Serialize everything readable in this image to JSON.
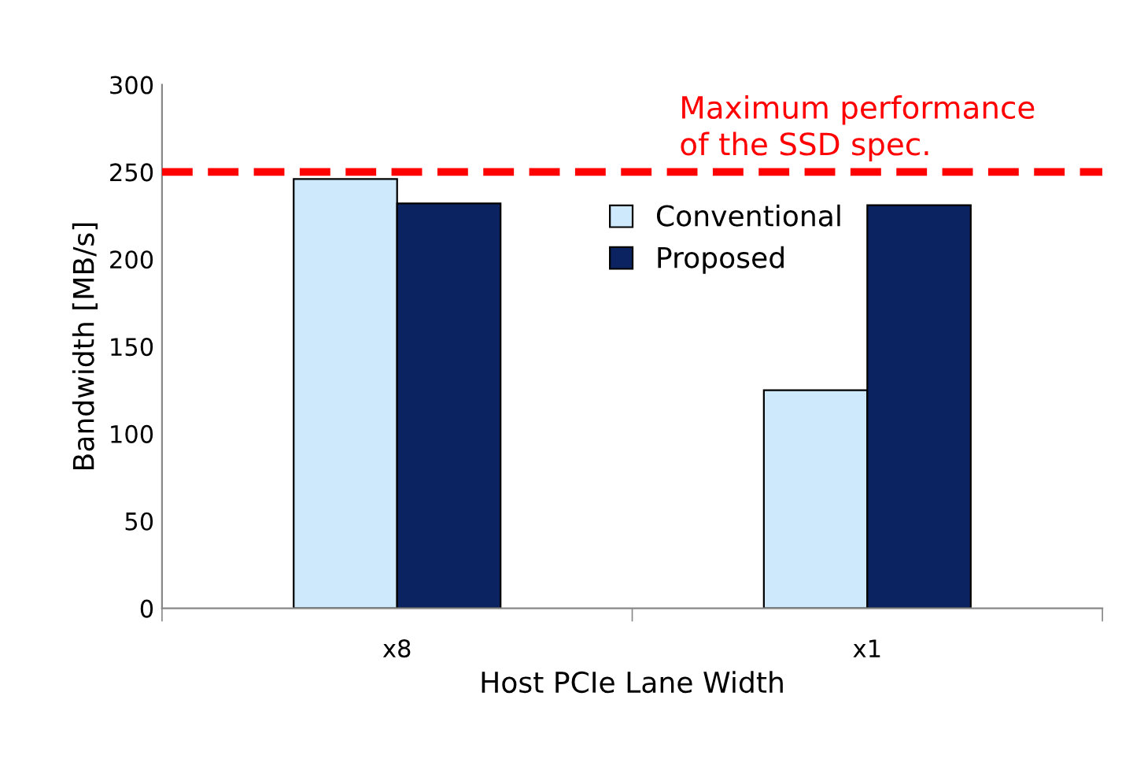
{
  "chart_data": {
    "type": "bar",
    "xlabel": "Host PCIe Lane Width",
    "ylabel": "Bandwidth [MB/s]",
    "categories": [
      "x8",
      "x1"
    ],
    "series": [
      {
        "name": "Conventional",
        "color": "#cde9fb",
        "values": [
          246,
          125
        ]
      },
      {
        "name": "Proposed",
        "color": "#0b2461",
        "values": [
          232,
          231
        ]
      }
    ],
    "ylim": [
      0,
      300
    ],
    "yticks": [
      0,
      50,
      100,
      150,
      200,
      250,
      300
    ],
    "grid": false,
    "legend": "top",
    "ref_lines": [
      {
        "axis": "y",
        "value": 250,
        "label": "Maximum performance\nof the SSD spec.",
        "color": "#ff0000",
        "line_style": "dashed"
      }
    ]
  }
}
